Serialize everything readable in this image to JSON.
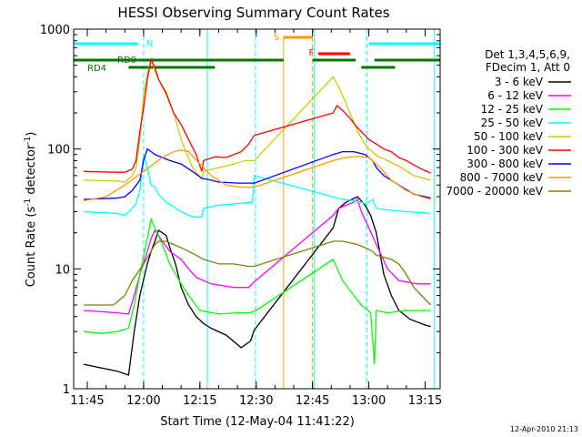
{
  "chart_data": {
    "type": "line",
    "title": "HESSI Observing Summary Count Rates",
    "xlabel": "Start Time (12-May-04 11:41:22)",
    "ylabel_main": "Count Rate (s",
    "ylabel_sup": "-1",
    "ylabel_mid": " detector",
    "ylabel_end": ")",
    "footer": "12-Apr-2010 21:13",
    "yscale": "log",
    "xlim": [
      41.37,
      139.0
    ],
    "ylim": [
      1,
      1000
    ],
    "x_ticks": [
      {
        "value": 45,
        "label": "11:45"
      },
      {
        "value": 60,
        "label": "12:00"
      },
      {
        "value": 75,
        "label": "12:15"
      },
      {
        "value": 90,
        "label": "12:30"
      },
      {
        "value": 105,
        "label": "12:45"
      },
      {
        "value": 120,
        "label": "13:00"
      },
      {
        "value": 135,
        "label": "13:15"
      }
    ],
    "y_ticks": [
      {
        "value": 1,
        "label": "1"
      },
      {
        "value": 10,
        "label": "10"
      },
      {
        "value": 100,
        "label": "100"
      },
      {
        "value": 1000,
        "label": "1000"
      }
    ],
    "legend_header": [
      "Det 1,3,4,5,6,9,",
      "FDecim 1, Att 0"
    ],
    "legend_placement": "right",
    "series": [
      {
        "name": "3 - 6 keV",
        "color": "#000000",
        "x": [
          44,
          53,
          56,
          57.5,
          59,
          61,
          62,
          63,
          64,
          66,
          67,
          68.5,
          70,
          72,
          74,
          76,
          78,
          82,
          86,
          88.5,
          89.5,
          110.5,
          112,
          114,
          115.5,
          117,
          119,
          120.5,
          122,
          124,
          126,
          128,
          131,
          135,
          136.5
        ],
        "y": [
          1.6,
          1.4,
          1.3,
          3,
          6,
          11,
          14,
          17,
          21,
          19,
          15,
          11,
          7,
          5,
          4,
          3.5,
          3.2,
          2.8,
          2.2,
          2.5,
          3.1,
          22,
          32,
          36,
          38,
          40,
          34,
          28,
          20,
          9,
          6,
          4.5,
          3.8,
          3.4,
          3.3
        ]
      },
      {
        "name": "6 - 12 keV",
        "color": "#ff00ff",
        "x": [
          44,
          53,
          56,
          57.5,
          59,
          61,
          62,
          63,
          64,
          65,
          67,
          70,
          72,
          74,
          78,
          84,
          88,
          89.5,
          110.5,
          112,
          114,
          116,
          117,
          118,
          120,
          122,
          125,
          128,
          133,
          136.5
        ],
        "y": [
          4.5,
          4.3,
          4.2,
          6,
          9,
          14,
          18,
          21,
          19,
          17,
          14,
          12,
          10,
          8.5,
          7.5,
          7,
          7,
          7.8,
          28,
          32,
          34,
          36,
          38,
          30,
          22,
          16,
          10,
          8,
          7.5,
          7.5
        ]
      },
      {
        "name": "12 - 25 keV",
        "color": "#00ff00",
        "x": [
          44,
          49,
          53,
          56,
          57.5,
          59,
          61,
          62,
          63,
          65,
          67,
          70,
          72,
          75,
          80,
          85,
          88,
          89.5,
          110.5,
          113,
          116,
          118,
          119.5,
          120.5,
          121.5,
          122,
          125,
          130,
          136.5
        ],
        "y": [
          3,
          2.9,
          3,
          3.2,
          5,
          9,
          18,
          26,
          22,
          16,
          11,
          7.5,
          6,
          4.5,
          4.2,
          4.3,
          4.3,
          4.4,
          12,
          8,
          6,
          5,
          4.6,
          4.3,
          1.6,
          4.5,
          4.3,
          4.5,
          4.5
        ]
      },
      {
        "name": "25 - 50 keV",
        "color": "#00ffff",
        "x": [
          44,
          53,
          55,
          57,
          58,
          59,
          60,
          61,
          62,
          63,
          64,
          66,
          68,
          70,
          72,
          74,
          75.5,
          76,
          80,
          85,
          89,
          89.5,
          110.5,
          113,
          116,
          118,
          119,
          120,
          121,
          122,
          125,
          130,
          134,
          136.5
        ],
        "y": [
          30,
          29,
          28,
          32,
          35,
          45,
          90,
          70,
          50,
          48,
          42,
          36,
          33,
          30,
          28,
          27,
          27,
          32,
          34,
          35,
          36,
          60,
          40,
          38,
          37,
          36,
          35,
          36,
          38,
          32,
          31,
          30,
          29.5,
          29
        ]
      },
      {
        "name": "50 - 100 keV",
        "color": "#cccc00",
        "x": [
          44,
          53,
          55,
          57,
          58,
          59,
          60,
          61,
          62,
          63,
          64,
          66,
          68,
          70,
          73,
          75.5,
          76,
          80,
          84,
          87,
          89.5,
          110.5,
          111.5,
          113,
          115,
          117,
          119,
          120,
          121,
          122,
          125,
          128,
          132,
          136.5
        ],
        "y": [
          55,
          54,
          53,
          60,
          70,
          120,
          280,
          420,
          560,
          450,
          380,
          300,
          200,
          120,
          70,
          56,
          65,
          70,
          75,
          80,
          80,
          400,
          350,
          280,
          200,
          140,
          110,
          100,
          95,
          88,
          80,
          72,
          60,
          55
        ]
      },
      {
        "name": "100 - 300 keV",
        "color": "#ff0000",
        "x": [
          44,
          53,
          55,
          57,
          58,
          59,
          60,
          61,
          62,
          63,
          64,
          66,
          68,
          70,
          72,
          74,
          75.5,
          76,
          79,
          82,
          86,
          88,
          89.5,
          110.5,
          111.5,
          113,
          115,
          117,
          119,
          120,
          121,
          122,
          124,
          126,
          128,
          130,
          134,
          136.5
        ],
        "y": [
          65,
          64,
          64,
          68,
          80,
          140,
          220,
          380,
          560,
          480,
          380,
          290,
          200,
          160,
          120,
          90,
          65,
          80,
          86,
          85,
          95,
          110,
          130,
          200,
          230,
          210,
          180,
          150,
          130,
          120,
          115,
          110,
          100,
          95,
          85,
          80,
          68,
          63
        ]
      },
      {
        "name": "300 - 800 keV",
        "color": "#0000ff",
        "x": [
          44,
          53,
          55,
          57,
          59,
          60,
          61,
          62,
          63,
          65,
          67,
          70,
          73,
          75.5,
          78,
          80,
          85,
          89,
          89.5,
          110.5,
          113,
          116,
          119,
          121,
          122,
          124,
          128,
          132,
          136.5
        ],
        "y": [
          38,
          39,
          40,
          45,
          55,
          80,
          100,
          95,
          90,
          85,
          80,
          75,
          65,
          57,
          55,
          53,
          52,
          52,
          52,
          90,
          95,
          95,
          90,
          80,
          70,
          60,
          50,
          42,
          39
        ]
      },
      {
        "name": "800 - 7000 keV",
        "color": "#ff9900",
        "x": [
          44,
          50,
          55,
          60,
          65,
          68,
          70,
          72,
          75,
          78,
          82,
          86,
          89.5,
          110.5,
          114,
          117,
          120,
          123,
          126,
          130,
          134,
          136.5
        ],
        "y": [
          37,
          40,
          50,
          65,
          85,
          95,
          98,
          95,
          75,
          60,
          50,
          48,
          48,
          80,
          85,
          87,
          85,
          70,
          55,
          45,
          40,
          38
        ]
      },
      {
        "name": "7000 - 20000 keV",
        "color": "#808000",
        "x": [
          44,
          48,
          52,
          55,
          57,
          60,
          62,
          63,
          64,
          66,
          68,
          70,
          72,
          74,
          76,
          80,
          84,
          88,
          89.5,
          110.5,
          113,
          115,
          117,
          119,
          121,
          122,
          124,
          126,
          128,
          130,
          132,
          134,
          136.5
        ],
        "y": [
          5,
          5,
          5,
          6,
          8,
          11,
          14,
          16,
          17,
          17,
          16,
          15,
          14,
          13,
          12,
          11,
          11,
          10.5,
          10.5,
          17,
          17,
          16.5,
          16,
          15,
          14,
          13,
          12.5,
          12,
          11,
          9,
          7,
          6,
          5
        ]
      }
    ],
    "annotations": {
      "N": {
        "label": "N",
        "x": 60,
        "color": "#00ffff"
      },
      "S": {
        "label": "S",
        "x": 97.3,
        "color": "#ff9900"
      },
      "F": {
        "label": "F",
        "x": 105,
        "color": "#ff0000"
      },
      "RD0": {
        "label": "RD0"
      },
      "RD4": {
        "label": "RD4"
      }
    },
    "night_intervals": [
      [
        41.37,
        58.5
      ],
      [
        120,
        139
      ]
    ],
    "saa_interval": [
      97.3,
      105
    ],
    "flare_interval": [
      106.5,
      115
    ],
    "decim_rd0": [
      [
        41.37,
        58.5
      ],
      [
        58.5,
        79
      ],
      [
        79,
        97.3
      ],
      [
        105,
        116.5
      ],
      [
        121.5,
        139
      ]
    ],
    "decim_rd4": [
      [
        56,
        79
      ],
      [
        118,
        127
      ]
    ],
    "cyan_lines": [
      60,
      77,
      89.8,
      105.5,
      119.5,
      137.5
    ]
  }
}
